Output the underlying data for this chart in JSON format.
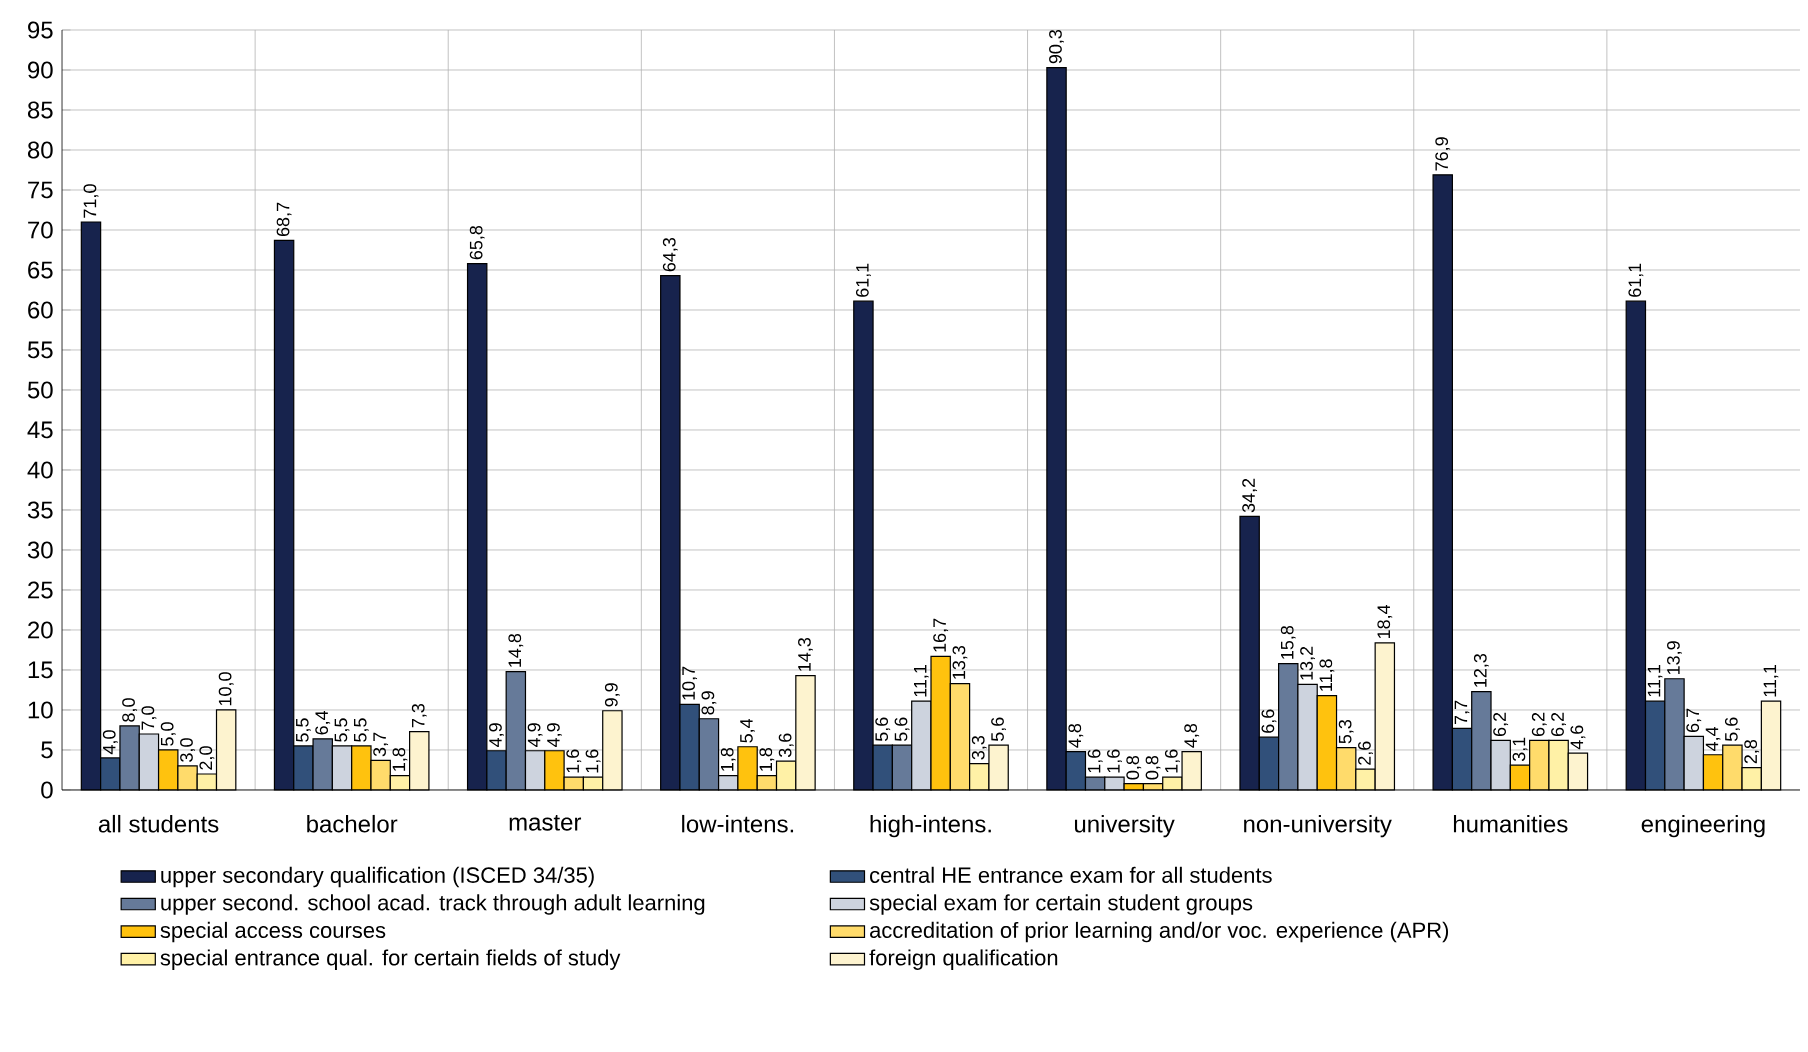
{
  "chart_data": {
    "type": "bar",
    "categories": [
      "all students",
      "bachelor",
      "master",
      "low-intens.",
      "high-intens.",
      "university",
      "non-university",
      "humanities",
      "engineering"
    ],
    "series": [
      {
        "name": "upper secondary qualification (ISCED 34/35)",
        "color": "#17234d",
        "values": [
          71.0,
          68.7,
          65.8,
          64.3,
          61.1,
          90.3,
          34.2,
          76.9,
          61.1
        ],
        "value_labels": [
          "71,0",
          "68,7",
          "65,8",
          "64,3",
          "61,1",
          "90,3",
          "34,2",
          "76,9",
          "61,1"
        ]
      },
      {
        "name": "central HE entrance exam for all students",
        "color": "#31507a",
        "values": [
          4.0,
          5.5,
          4.9,
          10.7,
          5.6,
          4.8,
          6.6,
          7.7,
          11.1
        ],
        "value_labels": [
          "4,0",
          "5,5",
          "4,9",
          "10,7",
          "5,6",
          "4,8",
          "6,6",
          "7,7",
          "11,1"
        ]
      },
      {
        "name": "upper second. school acad. track through adult learning",
        "color": "#667a99",
        "values": [
          8.0,
          6.4,
          14.8,
          8.9,
          5.6,
          1.6,
          15.8,
          12.3,
          13.9
        ],
        "value_labels": [
          "8,0",
          "6,4",
          "14,8",
          "8,9",
          "5,6",
          "1,6",
          "15,8",
          "12,3",
          "13,9"
        ]
      },
      {
        "name": "special exam for certain student groups",
        "color": "#cdd3de",
        "values": [
          7.0,
          5.5,
          4.9,
          1.8,
          11.1,
          1.6,
          13.2,
          6.2,
          6.7
        ],
        "value_labels": [
          "7,0",
          "5,5",
          "4,9",
          "1,8",
          "11,1",
          "1,6",
          "13,2",
          "6,2",
          "6,7"
        ]
      },
      {
        "name": "special access courses",
        "color": "#ffc20e",
        "values": [
          5.0,
          5.5,
          4.9,
          5.4,
          16.7,
          0.8,
          11.8,
          3.1,
          4.4
        ],
        "value_labels": [
          "5,0",
          "5,5",
          "4,9",
          "5,4",
          "16,7",
          "0,8",
          "11,8",
          "3,1",
          "4,4"
        ]
      },
      {
        "name": "accreditation of prior learning and/or voc. experience (APR)",
        "color": "#ffdb6b",
        "values": [
          3.0,
          3.7,
          1.6,
          1.8,
          13.3,
          0.8,
          5.3,
          6.2,
          5.6
        ],
        "value_labels": [
          "3,0",
          "3,7",
          "1,6",
          "1,8",
          "13,3",
          "0,8",
          "5,3",
          "6,2",
          "5,6"
        ]
      },
      {
        "name": "special entrance qual. for certain fields of study",
        "color": "#fff1a6",
        "values": [
          2.0,
          1.8,
          1.6,
          3.6,
          3.3,
          1.6,
          2.6,
          6.2,
          2.8
        ],
        "value_labels": [
          "2,0",
          "1,8",
          "1,6",
          "3,6",
          "3,3",
          "1,6",
          "2,6",
          "6,2",
          "2,8"
        ]
      },
      {
        "name": "foreign qualification",
        "color": "#fdf3cf",
        "values": [
          10.0,
          7.3,
          9.9,
          14.3,
          5.6,
          4.8,
          18.4,
          4.6,
          11.1
        ],
        "value_labels": [
          "10,0",
          "7,3",
          "9,9",
          "14,3",
          "5,6",
          "4,8",
          "18,4",
          "4,6",
          "11,1"
        ]
      }
    ],
    "ylim": [
      0,
      95
    ],
    "yticks": [
      0,
      5,
      10,
      15,
      20,
      25,
      30,
      35,
      40,
      45,
      50,
      55,
      60,
      65,
      70,
      75,
      80,
      85,
      90,
      95
    ],
    "grid": true,
    "legend": "bottom"
  }
}
